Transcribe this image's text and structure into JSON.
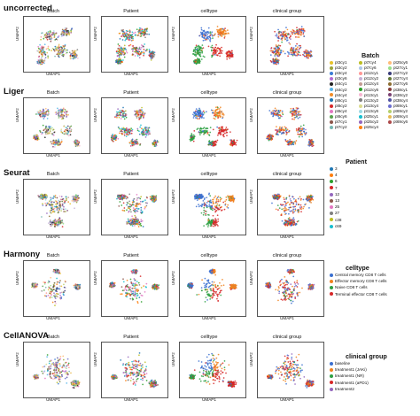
{
  "panel_titles": [
    "Batch",
    "Patient",
    "celltype",
    "clinical group"
  ],
  "axis_x_label": "UMAP1",
  "axis_y_label": "UMAP2",
  "methods": [
    "uncorrected",
    "Liger",
    "Seurat",
    "Harmony",
    "CellANOVA"
  ],
  "legends": {
    "batch": {
      "title": "Batch",
      "items": [
        "pt3cy1",
        "pt3cy2",
        "pt3cy4",
        "pt3cy6",
        "pt4cy1",
        "pt4cy2",
        "pt4cy4",
        "pt6cy1",
        "pt6cy2",
        "pt6cy4",
        "pt6cy6",
        "pt7cy1",
        "pt7cy2",
        "pt7cy4",
        "pt7cy6",
        "pt12cy1",
        "pt12cy2",
        "pt12cy4",
        "pt12cy6",
        "pt13cy1",
        "pt13cy2",
        "pt13cy4",
        "pt13cy6",
        "pt25cy1",
        "pt25cy2",
        "pt25cy4",
        "pt25cy6",
        "pt27cy1",
        "pt27cy2",
        "pt27cy4",
        "pt27cy6",
        "pt38cy1",
        "pt38cy2",
        "pt38cy4",
        "pt69cy1",
        "pt69cy2",
        "pt69cy4",
        "pt69cy6"
      ],
      "colors": [
        "#e6c229",
        "#9aa33a",
        "#3a7bd5",
        "#b36bd4",
        "#222222",
        "#56b4e9",
        "#f28e2b",
        "#1f77b4",
        "#d62728",
        "#e377c2",
        "#59a14f",
        "#8c564b",
        "#76b7b2",
        "#bcbd22",
        "#aec7e8",
        "#ff9896",
        "#c5b0d5",
        "#c49c94",
        "#2ca02c",
        "#f7b6d2",
        "#7f7f7f",
        "#dbdb8d",
        "#9edae5",
        "#17becf",
        "#9467bd",
        "#ff7f0e",
        "#ffbb78",
        "#98df8a",
        "#393b79",
        "#637939",
        "#8c6d31",
        "#843c39",
        "#7b4173",
        "#5254a3",
        "#6b6ecf",
        "#b5cf6b",
        "#e7ba52",
        "#ad494a"
      ]
    },
    "patient": {
      "title": "Patient",
      "items": [
        "3",
        "4",
        "6",
        "7",
        "12",
        "13",
        "25",
        "27",
        "c38",
        "c69"
      ],
      "colors": [
        "#1f77b4",
        "#ff7f0e",
        "#2ca02c",
        "#d62728",
        "#9467bd",
        "#8c564b",
        "#e377c2",
        "#7f7f7f",
        "#bcbd22",
        "#17becf"
      ]
    },
    "celltype": {
      "title": "celltype",
      "items": [
        "Central memory CD8 T cells",
        "Effector memory CD8 T cells",
        "Naive CD8 T cells",
        "Terminal effector CD8 T cells"
      ],
      "colors": [
        "#3a6fd0",
        "#f0821e",
        "#2ea043",
        "#d62728"
      ]
    },
    "clinical_group": {
      "title": "clinical group",
      "items": [
        "baseline",
        "treatment1 (JAKi)",
        "treatment1 (NR)",
        "treatment1 (aPD1)",
        "treatment2"
      ],
      "colors": [
        "#3a6fd0",
        "#f0821e",
        "#2ea043",
        "#d62728",
        "#9467bd"
      ]
    }
  }
}
